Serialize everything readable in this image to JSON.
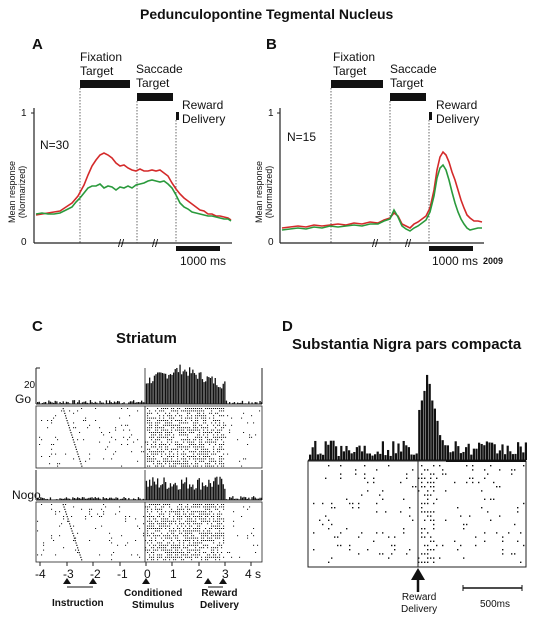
{
  "figure_title": "Pedunculopontine Tegmental Nucleus",
  "panel_a": {
    "letter": "A",
    "fixation_target": [
      "Fixation",
      "Target"
    ],
    "saccade_target": [
      "Saccade",
      "Target"
    ],
    "reward_delivery": [
      "Reward",
      "Delivery"
    ],
    "n_label": "N=30",
    "y_label": [
      "Mean response",
      "(Normarized)"
    ],
    "y_ticks": [
      "1",
      "0"
    ],
    "scale_bar": "1000 ms",
    "colors": {
      "red": "#d42a2a",
      "green": "#2a9a3c"
    }
  },
  "panel_b": {
    "letter": "B",
    "fixation_target": [
      "Fixation",
      "Target"
    ],
    "saccade_target": [
      "Saccade",
      "Target"
    ],
    "reward_delivery": [
      "Reward",
      "Delivery"
    ],
    "n_label": "N=15",
    "y_label": [
      "Mean response",
      "(Normarized)"
    ],
    "y_ticks": [
      "1",
      "0"
    ],
    "scale_bar": "1000 ms",
    "year": "2009"
  },
  "panel_c": {
    "letter": "C",
    "title": "Striatum",
    "go_label": "Go",
    "nogo_label": "Nogo",
    "count_label": "20",
    "x_ticks": [
      "-4",
      "-3",
      "-2",
      "-1",
      "0",
      "1",
      "2",
      "3",
      "4 s"
    ],
    "instruction": "Instruction",
    "conditioned_stimulus": [
      "Conditioned",
      "Stimulus"
    ],
    "reward_delivery": [
      "Reward",
      "Delivery"
    ]
  },
  "panel_d": {
    "letter": "D",
    "title": "Substantia Nigra pars compacta",
    "reward_delivery": [
      "Reward",
      "Delivery"
    ],
    "scale_bar": "500ms"
  }
}
